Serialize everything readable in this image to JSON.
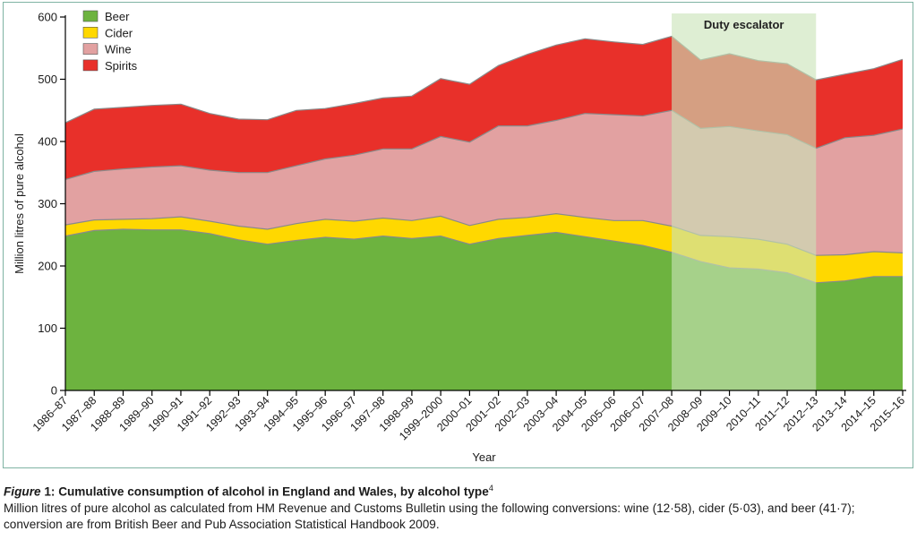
{
  "chart_data": {
    "type": "area",
    "stacked": true,
    "ylabel": "Million litres of pure alcohol",
    "xlabel": "Year",
    "ylim": [
      0,
      600
    ],
    "yticks": [
      0,
      100,
      200,
      300,
      400,
      500,
      600
    ],
    "categories": [
      "1986–87",
      "1987–88",
      "1988–89",
      "1989–90",
      "1990–91",
      "1991–92",
      "1992–93",
      "1993–94",
      "1994–95",
      "1995–96",
      "1996–97",
      "1997–98",
      "1998–99",
      "1999–2000",
      "2000–01",
      "2001–02",
      "2002–03",
      "2003–04",
      "2004–05",
      "2005–06",
      "2006–07",
      "2007–08",
      "2008–09",
      "2009–10",
      "2010–11",
      "2011–12",
      "2012–13",
      "2013–14",
      "2014–15",
      "2015–16"
    ],
    "series": [
      {
        "name": "Beer",
        "color": "#6db33f",
        "values": [
          248,
          257,
          259,
          258,
          258,
          252,
          242,
          235,
          241,
          246,
          243,
          248,
          244,
          248,
          235,
          244,
          249,
          254,
          247,
          240,
          233,
          222,
          207,
          197,
          195,
          189,
          173,
          176,
          183,
          183
        ]
      },
      {
        "name": "Cider",
        "color": "#ffd800",
        "values": [
          18,
          17,
          16,
          18,
          21,
          20,
          22,
          24,
          27,
          29,
          29,
          29,
          29,
          32,
          30,
          31,
          29,
          30,
          31,
          33,
          40,
          42,
          42,
          50,
          48,
          46,
          44,
          42,
          40,
          38
        ]
      },
      {
        "name": "Wine",
        "color": "#e2a1a1",
        "values": [
          73,
          78,
          81,
          83,
          82,
          82,
          86,
          91,
          93,
          97,
          106,
          111,
          115,
          128,
          134,
          150,
          147,
          150,
          167,
          170,
          168,
          186,
          172,
          177,
          174,
          176,
          172,
          188,
          187,
          199
        ]
      },
      {
        "name": "Spirits",
        "color": "#e8302a",
        "values": [
          91,
          100,
          99,
          99,
          99,
          91,
          86,
          85,
          89,
          81,
          83,
          82,
          85,
          93,
          93,
          97,
          115,
          121,
          120,
          117,
          115,
          119,
          110,
          117,
          113,
          114,
          110,
          102,
          107,
          112
        ]
      }
    ],
    "annotation": {
      "label": "Duty escalator",
      "from": "2007–08",
      "to": "2012–13",
      "color": "#c9e4b8"
    }
  },
  "caption": {
    "figure_word": "Figure",
    "figure_number": " 1: ",
    "title": "Cumulative consumption of alcohol in England and Wales, by alcohol type",
    "superscript": "4",
    "line1": "Million litres of pure alcohol as calculated from HM Revenue and Customs Bulletin using the following conversions: wine (12·58), cider (5·03), and beer (41·7);",
    "line2": "conversion are from British Beer and Pub Association Statistical Handbook 2009."
  }
}
